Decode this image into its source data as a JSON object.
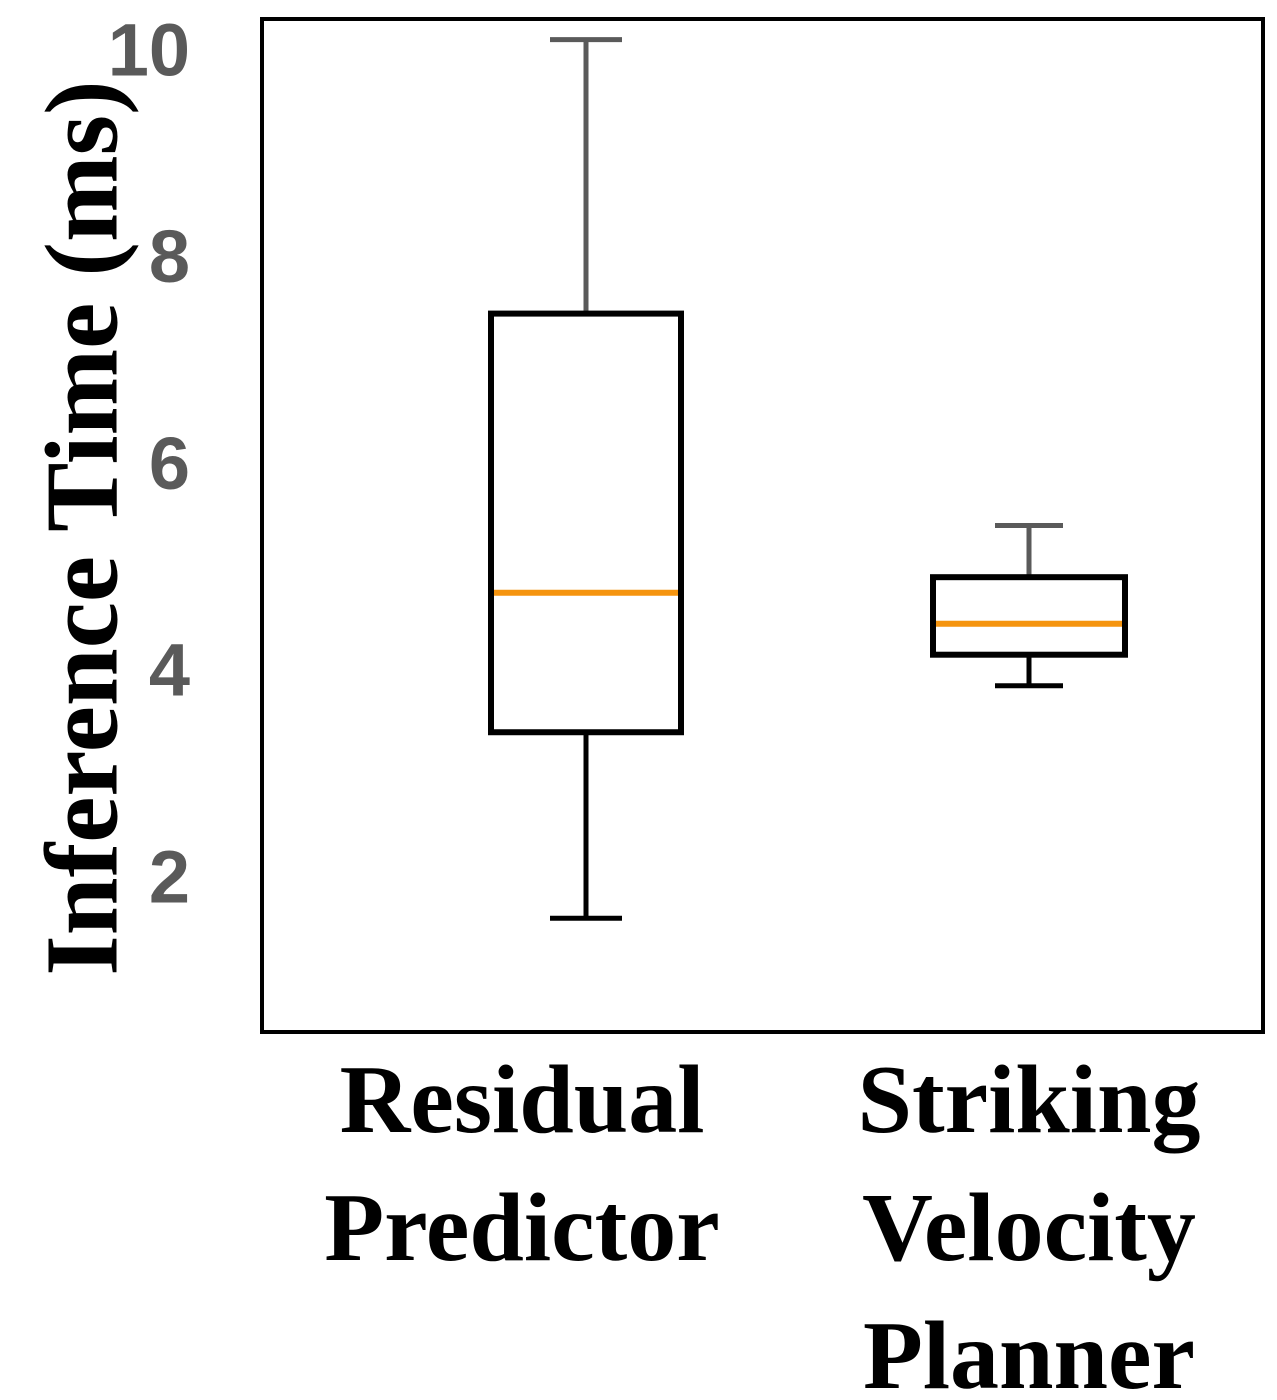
{
  "chart_data": {
    "type": "box",
    "title": "",
    "xlabel": "",
    "ylabel": "Inference Time (ms)",
    "ylim": [
      0.5,
      10.3
    ],
    "yticks": [
      2,
      4,
      6,
      8,
      10
    ],
    "yticklabels": [
      "2",
      "4",
      "6",
      "8",
      "10"
    ],
    "grid": false,
    "categories": [
      {
        "lines": [
          "Residual",
          "Predictor"
        ]
      },
      {
        "lines": [
          "Striking",
          "Velocity",
          "Planner"
        ]
      }
    ],
    "boxes": [
      {
        "whisker_low": 1.6,
        "q1": 3.4,
        "median": 4.75,
        "q3": 7.45,
        "whisker_high": 10.1
      },
      {
        "whisker_low": 3.85,
        "q1": 4.15,
        "median": 4.45,
        "q3": 4.9,
        "whisker_high": 5.4
      }
    ],
    "colors": {
      "median": "#f5940f",
      "upper_whisker": "#5a5a5a",
      "lower_whisker": "#000000",
      "box_edge": "#000000",
      "tick_label": "#5a5a5a"
    }
  }
}
